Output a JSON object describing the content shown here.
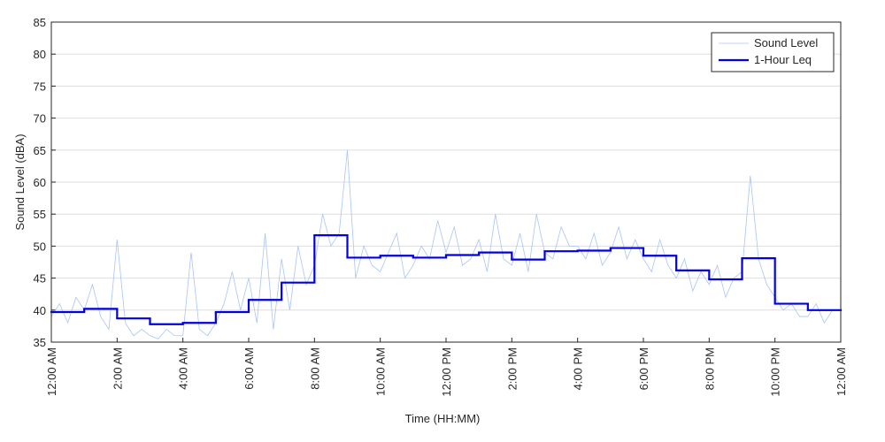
{
  "chart_data": {
    "type": "line",
    "xlabel": "Time (HH:MM)",
    "ylabel": "Sound Level (dBA)",
    "xlim": [
      0,
      24
    ],
    "ylim": [
      35,
      85
    ],
    "xticks": [
      {
        "value": 0,
        "label": "12:00 AM"
      },
      {
        "value": 2,
        "label": "2:00 AM"
      },
      {
        "value": 4,
        "label": "4:00 AM"
      },
      {
        "value": 6,
        "label": "6:00 AM"
      },
      {
        "value": 8,
        "label": "8:00 AM"
      },
      {
        "value": 10,
        "label": "10:00 AM"
      },
      {
        "value": 12,
        "label": "12:00 PM"
      },
      {
        "value": 14,
        "label": "2:00 PM"
      },
      {
        "value": 16,
        "label": "4:00 PM"
      },
      {
        "value": 18,
        "label": "6:00 PM"
      },
      {
        "value": 20,
        "label": "8:00 PM"
      },
      {
        "value": 22,
        "label": "10:00 PM"
      },
      {
        "value": 24,
        "label": "12:00 AM"
      }
    ],
    "yticks": [
      35,
      40,
      45,
      50,
      55,
      60,
      65,
      70,
      75,
      80,
      85
    ],
    "grid": true,
    "legend": "top-right",
    "series": [
      {
        "name": "Sound Level",
        "color": "#a9c4f5",
        "width": 0.8,
        "x": [
          0,
          0.25,
          0.5,
          0.75,
          1,
          1.25,
          1.5,
          1.75,
          2,
          2.25,
          2.5,
          2.75,
          3,
          3.25,
          3.5,
          3.75,
          4,
          4.25,
          4.5,
          4.75,
          5,
          5.25,
          5.5,
          5.75,
          6,
          6.25,
          6.5,
          6.75,
          7,
          7.25,
          7.5,
          7.75,
          8,
          8.25,
          8.5,
          8.75,
          9,
          9.25,
          9.5,
          9.75,
          10,
          10.25,
          10.5,
          10.75,
          11,
          11.25,
          11.5,
          11.75,
          12,
          12.25,
          12.5,
          12.75,
          13,
          13.25,
          13.5,
          13.75,
          14,
          14.25,
          14.5,
          14.75,
          15,
          15.25,
          15.5,
          15.75,
          16,
          16.25,
          16.5,
          16.75,
          17,
          17.25,
          17.5,
          17.75,
          18,
          18.25,
          18.5,
          18.75,
          19,
          19.25,
          19.5,
          19.75,
          20,
          20.25,
          20.5,
          20.75,
          21,
          21.25,
          21.5,
          21.75,
          22,
          22.25,
          22.5,
          22.75,
          23,
          23.25,
          23.5,
          23.75,
          24
        ],
        "values": [
          39,
          41,
          38,
          42,
          40,
          44,
          39,
          37,
          51,
          38,
          36,
          37,
          36,
          35.5,
          37,
          36,
          36,
          49,
          37,
          36,
          38,
          41,
          46,
          40,
          45,
          38,
          52,
          37,
          48,
          40,
          50,
          44,
          47,
          55,
          50,
          52,
          65,
          45,
          50,
          47,
          46,
          49,
          52,
          45,
          47,
          50,
          48,
          54,
          49,
          53,
          47,
          48,
          51,
          46,
          55,
          48,
          47,
          52,
          46,
          55,
          49,
          48,
          53,
          50,
          50,
          48,
          52,
          47,
          49,
          53,
          48,
          51,
          48,
          46,
          51,
          47,
          45,
          48,
          43,
          46,
          44,
          47,
          42,
          45,
          46,
          61,
          48,
          44,
          42,
          40,
          41,
          39,
          39,
          41,
          38,
          40,
          40
        ]
      },
      {
        "name": "1-Hour Leq",
        "color": "#0000e0",
        "width": 2.2,
        "step": true,
        "x": [
          0,
          1,
          2,
          3,
          4,
          5,
          6,
          7,
          8,
          9,
          10,
          11,
          12,
          13,
          14,
          15,
          16,
          17,
          18,
          19,
          20,
          21,
          22,
          23
        ],
        "values": [
          39.7,
          40.2,
          38.7,
          37.8,
          38.0,
          39.7,
          41.6,
          44.3,
          51.7,
          48.2,
          48.5,
          48.2,
          48.6,
          49.0,
          47.9,
          49.2,
          49.3,
          49.7,
          48.5,
          46.2,
          44.8,
          48.1,
          41.0,
          40.0
        ]
      }
    ]
  }
}
